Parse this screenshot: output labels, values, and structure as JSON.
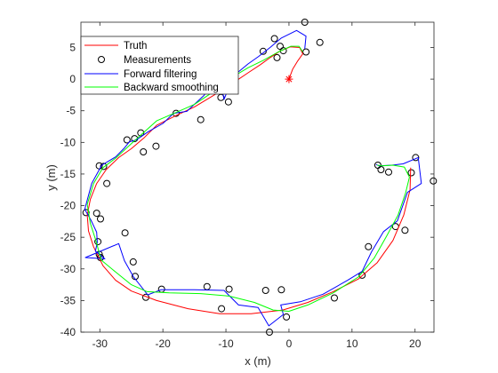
{
  "chart_data": {
    "type": "line",
    "xlabel": "x (m)",
    "ylabel": "y (m)",
    "xlim": [
      -33,
      23
    ],
    "ylim": [
      -40,
      9
    ],
    "xticks": [
      -30,
      -20,
      -10,
      0,
      10,
      20
    ],
    "yticks": [
      5,
      0,
      -5,
      -10,
      -15,
      -20,
      -25,
      -30,
      -35,
      -40
    ],
    "grid": false,
    "legend_position": "top-left",
    "legend": [
      "Truth",
      "Measurements",
      "Forward filtering",
      "Backward smoothing"
    ],
    "start_marker": {
      "x": 0,
      "y": 0,
      "symbol": "asterisk",
      "color": "#ff0000"
    },
    "series": [
      {
        "name": "Truth",
        "style": "line",
        "color": "#ff0000",
        "points": [
          [
            0,
            0
          ],
          [
            0.6,
            1.6
          ],
          [
            1.4,
            2.9
          ],
          [
            2.2,
            4.0
          ],
          [
            1.7,
            5.0
          ],
          [
            0.2,
            5.1
          ],
          [
            -1.5,
            4.4
          ],
          [
            -3.0,
            3.4
          ],
          [
            -4.5,
            2.3
          ],
          [
            -6.5,
            1.0
          ],
          [
            -9,
            -0.7
          ],
          [
            -12,
            -2.6
          ],
          [
            -15,
            -4.4
          ],
          [
            -18,
            -5.8
          ],
          [
            -21,
            -7.3
          ],
          [
            -23,
            -9.3
          ],
          [
            -25,
            -11
          ],
          [
            -27,
            -12.4
          ],
          [
            -29,
            -14.3
          ],
          [
            -30.5,
            -16.5
          ],
          [
            -31.5,
            -19
          ],
          [
            -32,
            -21.5
          ],
          [
            -31.8,
            -24
          ],
          [
            -31,
            -26.5
          ],
          [
            -29.5,
            -29.5
          ],
          [
            -27.5,
            -31.8
          ],
          [
            -25,
            -33.5
          ],
          [
            -21,
            -35
          ],
          [
            -16,
            -36.3
          ],
          [
            -11,
            -37.1
          ],
          [
            -6,
            -37.1
          ],
          [
            -1,
            -36.5
          ],
          [
            3,
            -35.3
          ],
          [
            7,
            -33.6
          ],
          [
            11,
            -31.6
          ],
          [
            14,
            -29
          ],
          [
            16.5,
            -25.5
          ],
          [
            18.2,
            -21.5
          ],
          [
            19.2,
            -17.5
          ],
          [
            19.3,
            -14
          ]
        ]
      },
      {
        "name": "Measurements",
        "style": "markers",
        "marker": "circle",
        "color": "#000000",
        "points": [
          [
            2.5,
            9
          ],
          [
            4.9,
            5.8
          ],
          [
            2.7,
            4.3
          ],
          [
            -2.3,
            6.4
          ],
          [
            -1.4,
            5.2
          ],
          [
            -0.9,
            4.5
          ],
          [
            -4.1,
            4.4
          ],
          [
            -1.9,
            3.4
          ],
          [
            -10.8,
            -2.9
          ],
          [
            -9.6,
            -3.6
          ],
          [
            -14.0,
            -6.4
          ],
          [
            -17.9,
            -5.4
          ],
          [
            -23.5,
            -8.5
          ],
          [
            -24.5,
            -9.4
          ],
          [
            -25.7,
            -9.6
          ],
          [
            -21.1,
            -10.6
          ],
          [
            -23.1,
            -11.5
          ],
          [
            -30.1,
            -13.7
          ],
          [
            -29.4,
            -13.8
          ],
          [
            -28.9,
            -16.5
          ],
          [
            -32.2,
            -21.1
          ],
          [
            -30.5,
            -21.2
          ],
          [
            -29.9,
            -22.1
          ],
          [
            -26.0,
            -24.3
          ],
          [
            -30.3,
            -25.7
          ],
          [
            -30.1,
            -27.7
          ],
          [
            -29.9,
            -28.2
          ],
          [
            -24.7,
            -28.9
          ],
          [
            -24.4,
            -31.2
          ],
          [
            -22.7,
            -34.5
          ],
          [
            -20.2,
            -33.2
          ],
          [
            -13.0,
            -32.8
          ],
          [
            -9.5,
            -33.2
          ],
          [
            -10.7,
            -36.3
          ],
          [
            -3.7,
            -33.4
          ],
          [
            -1.2,
            -33.3
          ],
          [
            -0.4,
            -37.6
          ],
          [
            -3.1,
            -40.0
          ],
          [
            7.2,
            -34.6
          ],
          [
            11.6,
            -31.0
          ],
          [
            12.6,
            -26.5
          ],
          [
            16.9,
            -23.3
          ],
          [
            18.4,
            -23.9
          ],
          [
            14.1,
            -13.6
          ],
          [
            14.6,
            -14.3
          ],
          [
            15.8,
            -14.7
          ],
          [
            19.4,
            -14.8
          ],
          [
            20.1,
            -12.4
          ],
          [
            22.9,
            -16.1
          ]
        ]
      },
      {
        "name": "Forward filtering",
        "style": "line",
        "color": "#0000ff",
        "points": [
          [
            2.5,
            4.8
          ],
          [
            2.7,
            6.8
          ],
          [
            1.2,
            7.7
          ],
          [
            -1.2,
            6.5
          ],
          [
            -3.0,
            5.0
          ],
          [
            -4.8,
            3.6
          ],
          [
            -6.5,
            2.4
          ],
          [
            -8.8,
            0.5
          ],
          [
            -10.3,
            -3.2
          ],
          [
            -11.0,
            0.5
          ],
          [
            -13.5,
            -2.6
          ],
          [
            -16.2,
            -5.1
          ],
          [
            -18.3,
            -5.4
          ],
          [
            -20,
            -7.0
          ],
          [
            -22.3,
            -8.3
          ],
          [
            -24.2,
            -9.6
          ],
          [
            -25.3,
            -9.9
          ],
          [
            -26.2,
            -11
          ],
          [
            -27.5,
            -12.3
          ],
          [
            -29.7,
            -13.6
          ],
          [
            -31.3,
            -16.5
          ],
          [
            -32.4,
            -20.6
          ],
          [
            -31.4,
            -22.3
          ],
          [
            -30.5,
            -24.2
          ],
          [
            -30.4,
            -25.8
          ],
          [
            -30.7,
            -27.2
          ],
          [
            -29.2,
            -28.4
          ],
          [
            -32.3,
            -28.2
          ],
          [
            -27,
            -26
          ],
          [
            -26.1,
            -28.7
          ],
          [
            -24.7,
            -31.2
          ],
          [
            -22.4,
            -34.1
          ],
          [
            -20.3,
            -33.3
          ],
          [
            -15,
            -33.3
          ],
          [
            -10.3,
            -33.4
          ],
          [
            -8.0,
            -35.7
          ],
          [
            -4.9,
            -36.1
          ],
          [
            -3.2,
            -39.0
          ],
          [
            -0.9,
            -37.2
          ],
          [
            -1.3,
            -35.7
          ],
          [
            1.8,
            -35.2
          ],
          [
            5.4,
            -34.0
          ],
          [
            9.3,
            -31.8
          ],
          [
            11.6,
            -30.4
          ],
          [
            13.1,
            -27.3
          ],
          [
            15.0,
            -24.1
          ],
          [
            17.2,
            -22.4
          ],
          [
            18.8,
            -17.9
          ],
          [
            21,
            -16.5
          ],
          [
            20.5,
            -12.4
          ],
          [
            18.1,
            -13.4
          ],
          [
            16.3,
            -13.6
          ],
          [
            14.3,
            -13.7
          ],
          [
            13.8,
            -13.5
          ]
        ]
      },
      {
        "name": "Backward smoothing",
        "style": "line",
        "color": "#00ff00",
        "points": [
          [
            2.2,
            4.3
          ],
          [
            1.6,
            5.2
          ],
          [
            0.3,
            5.2
          ],
          [
            -1.7,
            4.3
          ],
          [
            -4.0,
            3.0
          ],
          [
            -6.5,
            1.8
          ],
          [
            -9.0,
            0.3
          ],
          [
            -12,
            -2.0
          ],
          [
            -15,
            -4.0
          ],
          [
            -18,
            -5.3
          ],
          [
            -21,
            -6.6
          ],
          [
            -23,
            -8.4
          ],
          [
            -25,
            -10.2
          ],
          [
            -27.5,
            -12.5
          ],
          [
            -29.5,
            -14.0
          ],
          [
            -31,
            -16.5
          ],
          [
            -32,
            -19.8
          ],
          [
            -31.5,
            -22.8
          ],
          [
            -30.6,
            -25.6
          ],
          [
            -29.8,
            -28.6
          ],
          [
            -27.5,
            -30.5
          ],
          [
            -25,
            -32.5
          ],
          [
            -22.5,
            -33.6
          ],
          [
            -19,
            -33.8
          ],
          [
            -14,
            -33.9
          ],
          [
            -9.5,
            -34.3
          ],
          [
            -5.5,
            -35.3
          ],
          [
            -2.5,
            -36.5
          ],
          [
            0,
            -36.7
          ],
          [
            3,
            -35.7
          ],
          [
            7,
            -33.8
          ],
          [
            11,
            -31.3
          ],
          [
            13.5,
            -28.3
          ],
          [
            15.5,
            -24.8
          ],
          [
            17.3,
            -21.5
          ],
          [
            18.5,
            -18
          ],
          [
            19.1,
            -15.5
          ],
          [
            18.3,
            -13.9
          ],
          [
            16.5,
            -13.6
          ],
          [
            14.8,
            -13.7
          ],
          [
            14.0,
            -13.6
          ]
        ]
      }
    ]
  }
}
